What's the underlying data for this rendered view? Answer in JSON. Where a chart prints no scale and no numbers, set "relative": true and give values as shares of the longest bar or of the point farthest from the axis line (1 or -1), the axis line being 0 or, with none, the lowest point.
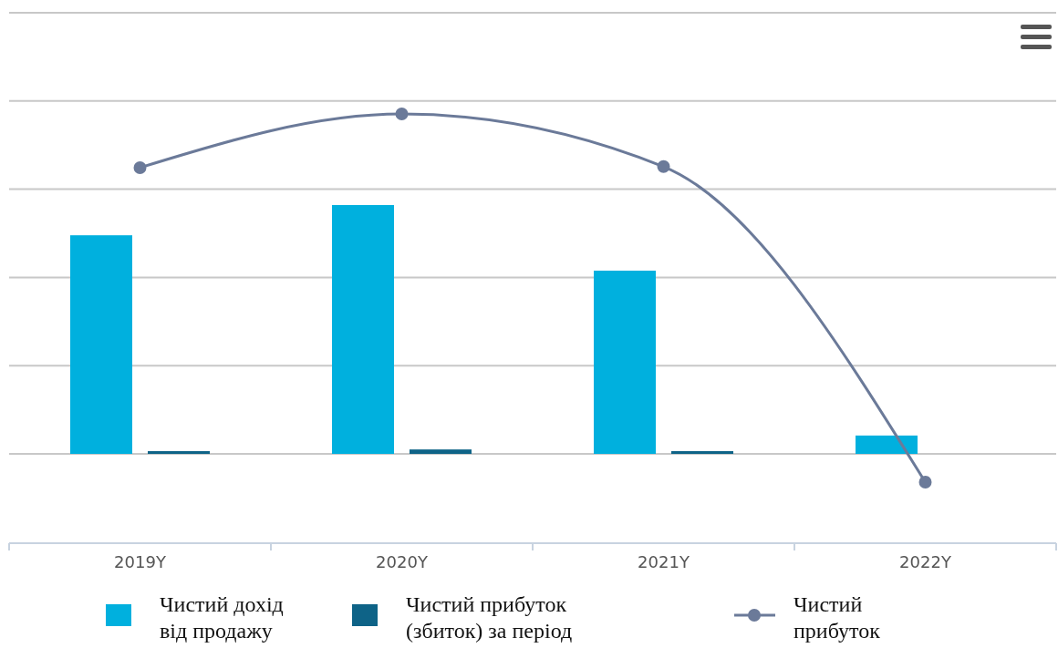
{
  "chart_data": {
    "type": "bar",
    "relative": true,
    "categories": [
      "2019Y",
      "2020Y",
      "2021Y",
      "2022Y"
    ],
    "grid": true,
    "legend": "bottom",
    "series": [
      {
        "name": "Чистий дохід від продажу",
        "color": "#00b0de",
        "values": [
          0.643,
          0.732,
          0.539,
          0.054
        ]
      },
      {
        "name": "Чистий прибуток (збиток) за період",
        "color": "#0e6387",
        "values": [
          0.008,
          0.013,
          0.008,
          0
        ]
      },
      {
        "name": "Чистий прибуток",
        "type": "line",
        "color": "#6b7a99",
        "marker": "circle",
        "values": [
          0.842,
          1,
          0.845,
          -0.083
        ]
      }
    ]
  }
}
